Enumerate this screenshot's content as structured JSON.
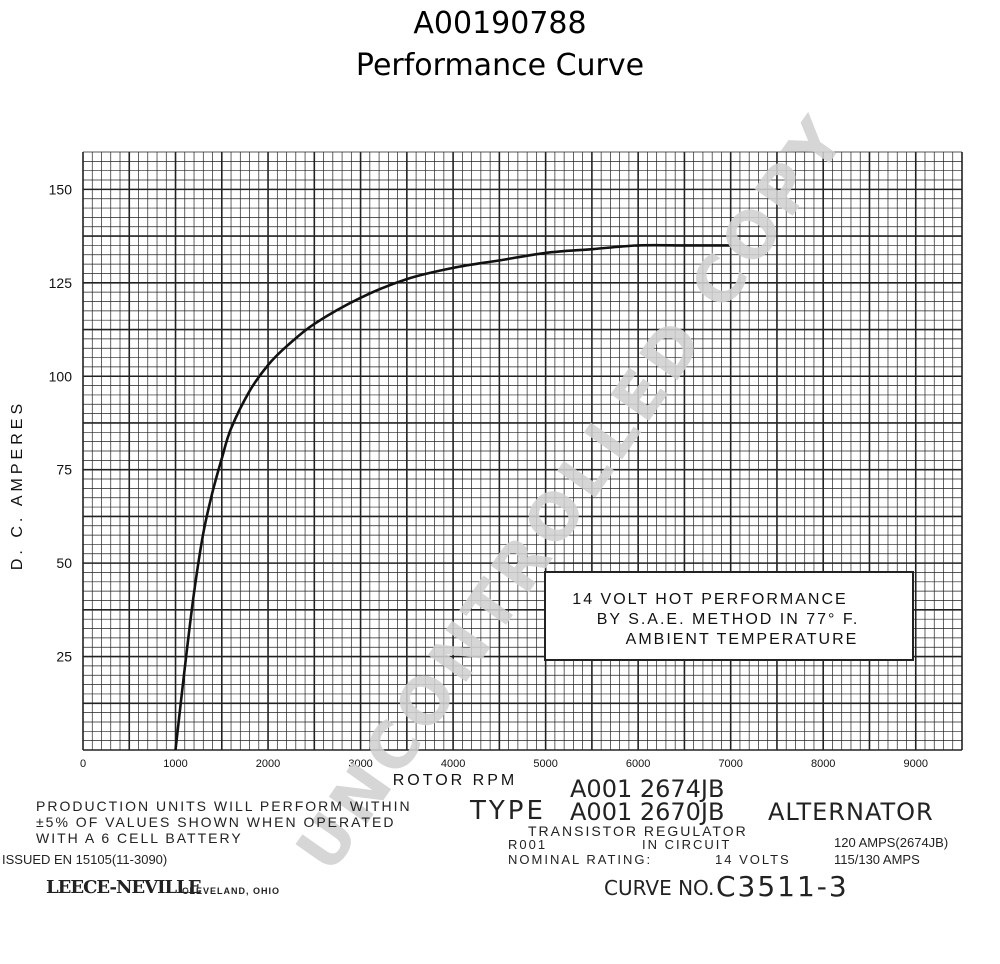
{
  "header": {
    "title": "A00190788",
    "subtitle": "Performance Curve"
  },
  "chart_data": {
    "type": "line",
    "xlabel": "ROTOR RPM",
    "ylabel": "D. C. AMPERES",
    "xlim": [
      0,
      9500
    ],
    "ylim": [
      0,
      160
    ],
    "x_ticks": [
      "0",
      "1000",
      "2000",
      "3000",
      "4000",
      "5000",
      "6000",
      "7000",
      "8000",
      "9000"
    ],
    "y_ticks": [
      "25",
      "50",
      "75",
      "100",
      "125",
      "150"
    ],
    "grid": true,
    "series": [
      {
        "x": [
          1000,
          1100,
          1200,
          1300,
          1400,
          1500,
          1600,
          1800,
          2000,
          2200,
          2500,
          3000,
          3500,
          4000,
          4500,
          5000,
          5500,
          6000,
          6500,
          7000
        ],
        "y": [
          0,
          22,
          42,
          58,
          69,
          78,
          86,
          96,
          103,
          108,
          114,
          121,
          126,
          129,
          131,
          133,
          134,
          135,
          135,
          135
        ]
      }
    ],
    "annotation": [
      "14 VOLT HOT PERFORMANCE",
      "BY S.A.E. METHOD IN 77° F.",
      "AMBIENT TEMPERATURE"
    ]
  },
  "footer": {
    "production_note": [
      "PRODUCTION UNITS WILL PERFORM WITHIN",
      "±5% OF VALUES SHOWN WHEN OPERATED",
      "WITH A 6 CELL BATTERY"
    ],
    "issued": "ISSUED EN 15105(11-3090)",
    "manufacturer": "LEECE-NEVILLE",
    "location": "CLEVELAND, OHIO",
    "part_1": "A001 2674JB",
    "type_label": "TYPE",
    "part_2": "A001 2670JB",
    "alternator": "ALTERNATOR",
    "regulator": "TRANSISTOR REGULATOR",
    "r001": "R001",
    "in_circuit": "IN CIRCUIT",
    "nominal_label": "NOMINAL RATING:",
    "volts": "14 VOLTS",
    "amps_1": "120 AMPS(2674JB)",
    "amps_2": "115/130 AMPS",
    "curve_label": "CURVE NO.",
    "curve_no": "C3511-3"
  },
  "watermark": "UNCONTROLLED COPY",
  "colors": {
    "grid": "#222222",
    "curve": "#111111",
    "watermark": "#d0d0d0"
  }
}
